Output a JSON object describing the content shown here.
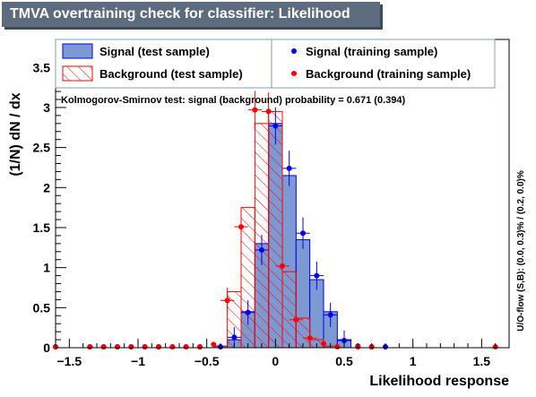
{
  "title": "TMVA overtraining check for classifier: Likelihood",
  "colors": {
    "signal_fill": "#7d99d1",
    "signal_line": "#0000ee",
    "background_line": "#ff0000",
    "title_bg": "#5c6b7d"
  },
  "chart_data": {
    "type": "bar",
    "xlabel": "Likelihood response",
    "ylabel": "(1/N) dN / dx",
    "right_label": "U/O-flow (S,B): (0.0, 0.3)% / (0.2, 0.0)%",
    "ks_text": "Kolmogorov-Smirnov test: signal (background) probability = 0.671 (0.394)",
    "xlim": [
      -1.6,
      1.7
    ],
    "ylim": [
      0,
      3.85
    ],
    "xticks": [
      -1.5,
      -1,
      -0.5,
      0,
      0.5,
      1,
      1.5
    ],
    "xtick_labels": [
      "−1.5",
      "−1",
      "−0.5",
      "0",
      "0.5",
      "1",
      "1.5"
    ],
    "yticks": [
      0,
      0.5,
      1,
      1.5,
      2,
      2.5,
      3,
      3.5
    ],
    "ytick_labels": [
      "0",
      "0.5",
      "1",
      "1.5",
      "2",
      "2.5",
      "3",
      "3.5"
    ],
    "grid": false,
    "legend_position": "top",
    "bin_edges": [
      -0.45,
      -0.35,
      -0.25,
      -0.15,
      -0.05,
      0.05,
      0.15,
      0.25,
      0.35,
      0.45,
      0.55
    ],
    "legend": [
      {
        "label": "Signal (test sample)",
        "marker": "signal-fill"
      },
      {
        "label": "Background (test sample)",
        "marker": "background-hatch"
      },
      {
        "label": "Signal (training sample)",
        "marker": "signal-dot"
      },
      {
        "label": "Background (training sample)",
        "marker": "background-dot"
      }
    ],
    "series": [
      {
        "name": "Signal (test sample)",
        "values": [
          0.02,
          0.1,
          0.45,
          1.3,
          2.8,
          2.15,
          1.35,
          0.85,
          0.45,
          0.1
        ]
      },
      {
        "name": "Background (test sample)",
        "values": [
          0.02,
          0.7,
          1.75,
          2.8,
          2.95,
          0.95,
          0.37,
          0.1,
          0.02,
          0.0
        ]
      },
      {
        "name": "Signal (training sample)",
        "x": [
          -1.6,
          -1.35,
          -1.25,
          -1.15,
          -1.05,
          -0.95,
          -0.85,
          -0.75,
          -0.65,
          -0.55,
          -0.4,
          -0.3,
          -0.2,
          -0.1,
          0.0,
          0.1,
          0.2,
          0.3,
          0.4,
          0.5,
          0.6,
          0.7,
          0.8
        ],
        "y": [
          0,
          0,
          0,
          0,
          0,
          0,
          0,
          0,
          0,
          0,
          0.01,
          0.13,
          0.44,
          1.22,
          2.77,
          2.24,
          1.43,
          0.9,
          0.41,
          0.09,
          0.02,
          0.01,
          0.0
        ]
      },
      {
        "name": "Background (training sample)",
        "x": [
          -1.6,
          -1.35,
          -1.25,
          -1.15,
          -1.05,
          -0.95,
          -0.85,
          -0.75,
          -0.65,
          -0.55,
          -0.45,
          -0.35,
          -0.25,
          -0.15,
          -0.05,
          0.05,
          0.15,
          0.25,
          0.35,
          0.45,
          0.6,
          0.7,
          1.6
        ],
        "y": [
          0,
          0,
          0,
          0,
          0,
          0,
          0,
          0,
          0,
          0,
          0.04,
          0.59,
          1.51,
          2.97,
          2.95,
          1.02,
          0.35,
          0.12,
          0.05,
          0.01,
          0.0,
          0.0,
          0.0
        ]
      }
    ]
  }
}
